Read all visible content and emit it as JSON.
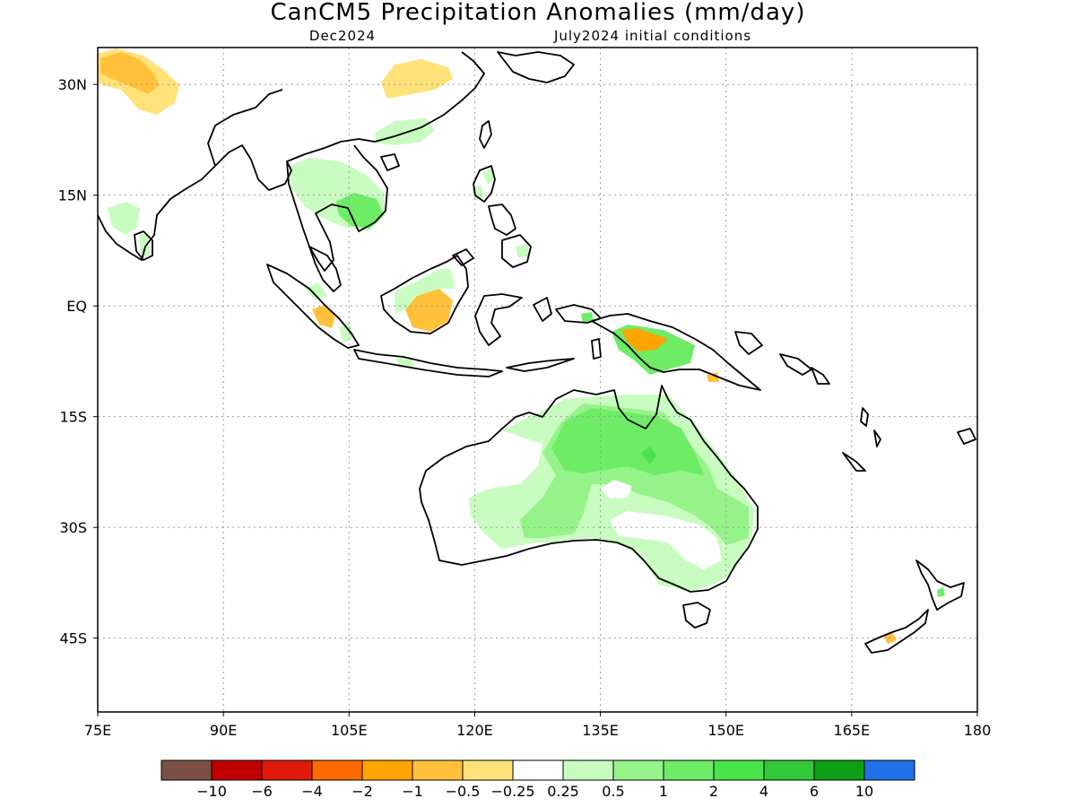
{
  "title": "CanCM5 Precipitation Anomalies (mm/day)",
  "subtitle_left": "Dec2024",
  "subtitle_right": "July2024 initial conditions",
  "map": {
    "lon_range": [
      75,
      180
    ],
    "lat_range": [
      -55,
      35
    ],
    "lon_ticks": [
      {
        "value": 75,
        "label": "75E"
      },
      {
        "value": 90,
        "label": "90E"
      },
      {
        "value": 105,
        "label": "105E"
      },
      {
        "value": 120,
        "label": "120E"
      },
      {
        "value": 135,
        "label": "135E"
      },
      {
        "value": 150,
        "label": "150E"
      },
      {
        "value": 165,
        "label": "165E"
      },
      {
        "value": 180,
        "label": "180"
      }
    ],
    "lat_ticks": [
      {
        "value": 30,
        "label": "30N"
      },
      {
        "value": 15,
        "label": "15N"
      },
      {
        "value": 0,
        "label": "EQ"
      },
      {
        "value": -15,
        "label": "15S"
      },
      {
        "value": -30,
        "label": "30S"
      },
      {
        "value": -45,
        "label": "45S"
      }
    ],
    "grid": true
  },
  "colorbar": {
    "colors": [
      "#7a5044",
      "#c00000",
      "#e01a0a",
      "#ff6a00",
      "#ffa400",
      "#ffc13a",
      "#ffe27a",
      "#ffffff",
      "#c9fcc0",
      "#96f38a",
      "#6eec66",
      "#48e44a",
      "#32c83a",
      "#0e9e18",
      "#2070e8"
    ],
    "labels": [
      "−10",
      "−6",
      "−4",
      "−2",
      "−1",
      "−0.5",
      "−0.25",
      "0.25",
      "0.5",
      "1",
      "2",
      "4",
      "6",
      "10"
    ]
  }
}
